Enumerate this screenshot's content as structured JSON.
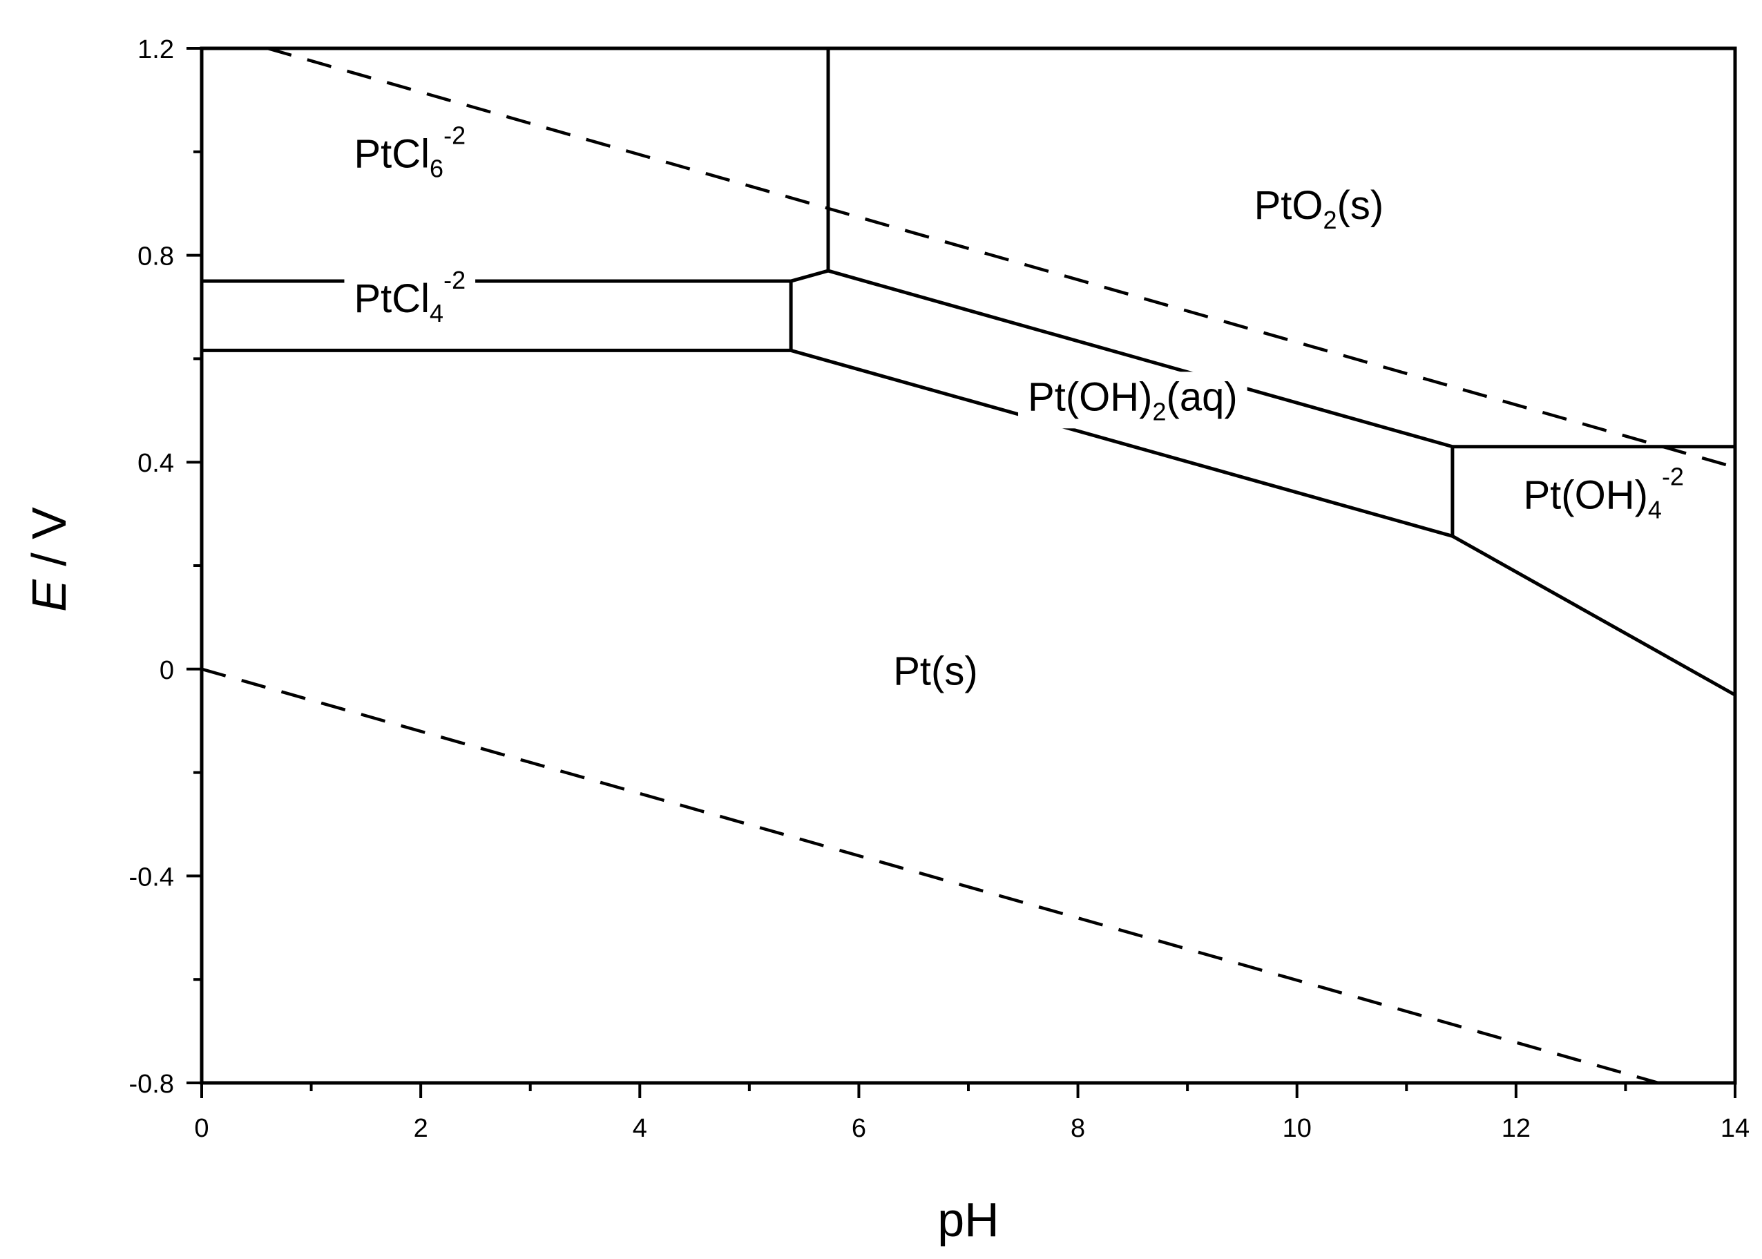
{
  "chart_data": {
    "type": "line",
    "xlabel": "pH",
    "ylabel": {
      "italic": "E",
      "rest": " / V"
    },
    "xlim": [
      0,
      14
    ],
    "ylim": [
      -0.8,
      1.2
    ],
    "x_ticks": [
      "0",
      "2",
      "4",
      "6",
      "8",
      "10",
      "12",
      "14"
    ],
    "y_ticks": [
      "-0.8",
      "-0.4",
      "0",
      "0.4",
      "0.8",
      "1.2"
    ],
    "x_tick_values": [
      0,
      2,
      4,
      6,
      8,
      10,
      12,
      14
    ],
    "y_tick_values": [
      -0.8,
      -0.4,
      0,
      0.4,
      0.8,
      1.2
    ],
    "grid": false,
    "boundaries": [
      {
        "style": "solid",
        "points": [
          [
            5.72,
            1.2
          ],
          [
            5.72,
            0.77
          ]
        ]
      },
      {
        "style": "solid",
        "points": [
          [
            0,
            0.75
          ],
          [
            5.38,
            0.75
          ],
          [
            5.72,
            0.77
          ]
        ]
      },
      {
        "style": "solid",
        "points": [
          [
            0,
            0.616
          ],
          [
            5.38,
            0.616
          ]
        ]
      },
      {
        "style": "solid",
        "points": [
          [
            5.38,
            0.75
          ],
          [
            5.38,
            0.616
          ]
        ]
      },
      {
        "style": "solid",
        "points": [
          [
            5.72,
            0.77
          ],
          [
            11.42,
            0.43
          ]
        ]
      },
      {
        "style": "solid",
        "points": [
          [
            5.38,
            0.616
          ],
          [
            11.42,
            0.257
          ]
        ]
      },
      {
        "style": "solid",
        "points": [
          [
            11.42,
            0.43
          ],
          [
            11.42,
            0.257
          ]
        ]
      },
      {
        "style": "solid",
        "points": [
          [
            11.42,
            0.43
          ],
          [
            14,
            0.43
          ]
        ]
      },
      {
        "style": "solid",
        "points": [
          [
            11.42,
            0.257
          ],
          [
            14,
            -0.05
          ]
        ]
      }
    ],
    "water_lines": [
      {
        "style": "dashed",
        "points": [
          [
            0.6,
            1.2
          ],
          [
            14,
            0.39
          ]
        ]
      },
      {
        "style": "dashed",
        "points": [
          [
            0,
            0
          ],
          [
            13.3,
            -0.8
          ]
        ]
      }
    ],
    "regions": [
      {
        "base": "PtCl",
        "sub": "6",
        "sup": "-2",
        "after": "",
        "x": 1.9,
        "y": 0.97
      },
      {
        "base": "PtCl",
        "sub": "4",
        "sup": "-2",
        "after": "",
        "x": 1.9,
        "y": 0.69
      },
      {
        "base": "PtO",
        "sub": "2",
        "sup": "",
        "after": "(s)",
        "x": 10.2,
        "y": 0.87
      },
      {
        "base": "Pt(OH)",
        "sub": "2",
        "sup": "",
        "after": "(aq)",
        "x": 8.5,
        "y": 0.5
      },
      {
        "base": "Pt(OH)",
        "sub": "4",
        "sup": "-2",
        "after": "",
        "x": 12.8,
        "y": 0.31
      },
      {
        "base": "Pt(s)",
        "sub": "",
        "sup": "",
        "after": "",
        "x": 6.7,
        "y": -0.03
      }
    ]
  }
}
